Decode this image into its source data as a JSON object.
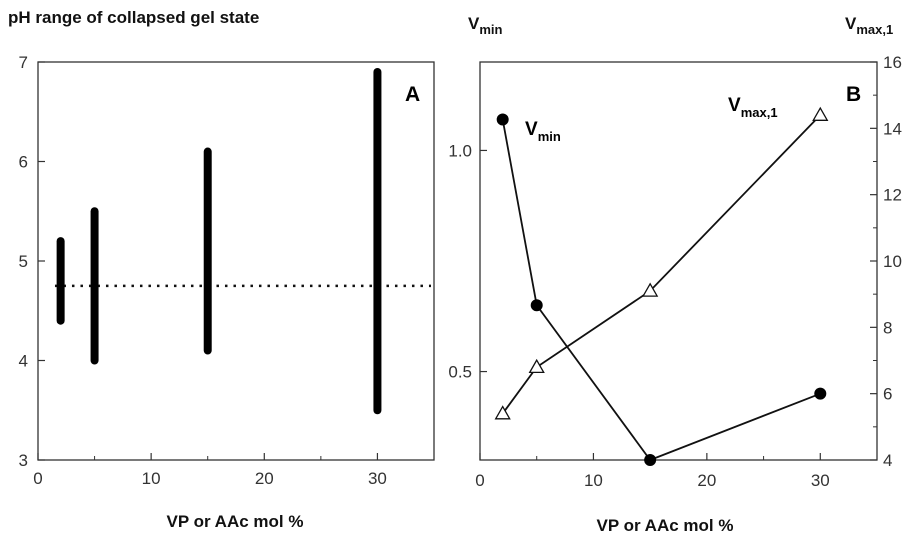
{
  "chart_data": [
    {
      "type": "bar",
      "panel_label": "A",
      "title": "pH range of collapsed gel state",
      "xlabel": "VP or AAc mol %",
      "ylabel": "",
      "xlim": [
        0,
        35
      ],
      "ylim": [
        3,
        7
      ],
      "xticks": [
        "0",
        "10",
        "20",
        "30"
      ],
      "yticks": [
        "3",
        "4",
        "5",
        "6",
        "7"
      ],
      "ranges": [
        {
          "x": 2,
          "low": 4.4,
          "high": 5.2
        },
        {
          "x": 5,
          "low": 4.0,
          "high": 5.5
        },
        {
          "x": 15,
          "low": 4.1,
          "high": 6.1
        },
        {
          "x": 30,
          "low": 3.5,
          "high": 6.9
        }
      ],
      "reference_line": {
        "y": 4.75,
        "style": "dotted"
      },
      "grid": false
    },
    {
      "type": "line",
      "panel_label": "B",
      "xlabel": "VP or AAc mol %",
      "ylabel_left": {
        "main": "V",
        "sub": "min"
      },
      "ylabel_right": {
        "main": "V",
        "sub": "max,1"
      },
      "xlim": [
        0,
        35
      ],
      "ylim_left": [
        0.3,
        1.2
      ],
      "ylim_right": [
        4,
        16
      ],
      "xticks": [
        "0",
        "10",
        "20",
        "30"
      ],
      "yticks_left": [
        "0.5",
        "1.0"
      ],
      "yticks_right": [
        "4",
        "6",
        "8",
        "10",
        "12",
        "14",
        "16"
      ],
      "series": [
        {
          "name": "Vmin",
          "label_main": "V",
          "label_sub": "min",
          "axis": "left",
          "marker": "filled-circle",
          "x": [
            2,
            5,
            15,
            30
          ],
          "y": [
            1.07,
            0.65,
            0.3,
            0.45
          ]
        },
        {
          "name": "Vmax,1",
          "label_main": "V",
          "label_sub": "max,1",
          "axis": "right",
          "marker": "open-triangle",
          "x": [
            2,
            5,
            15,
            30
          ],
          "y": [
            5.4,
            6.8,
            9.1,
            14.4
          ]
        }
      ],
      "grid": false
    }
  ]
}
